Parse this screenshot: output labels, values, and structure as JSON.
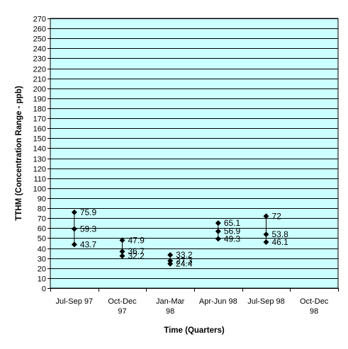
{
  "chart_data": {
    "type": "scatter",
    "title": "",
    "xlabel": "Time (Quarters)",
    "ylabel": "TTHM (Concentration Range - ppb)",
    "ylim": [
      0,
      270
    ],
    "ytick_step": 10,
    "grid": true,
    "legend": "none",
    "colors": {
      "plot_background": "#ccffff",
      "grid": "#000000",
      "marker": "#000000",
      "range_line": "#000000"
    },
    "categories": [
      "Jul-Sep 97",
      "Oct-Dec 97",
      "Jan-Mar 98",
      "Apr-Jun 98",
      "Jul-Sep 98",
      "Oct-Dec 98"
    ],
    "category_label_lines": [
      [
        "Jul-Sep 97"
      ],
      [
        "Oct-Dec",
        "97"
      ],
      [
        "Jan-Mar",
        "98"
      ],
      [
        "Apr-Jun 98"
      ],
      [
        "Jul-Sep 98"
      ],
      [
        "Oct-Dec",
        "98"
      ]
    ],
    "series": [
      {
        "values": [
          75.9,
          47.9,
          33.2,
          65.1,
          72,
          null
        ]
      },
      {
        "values": [
          59.3,
          36.7,
          27.3,
          56.9,
          53.8,
          null
        ]
      },
      {
        "values": [
          43.7,
          32.2,
          24.4,
          49.3,
          46.1,
          null
        ]
      }
    ]
  }
}
